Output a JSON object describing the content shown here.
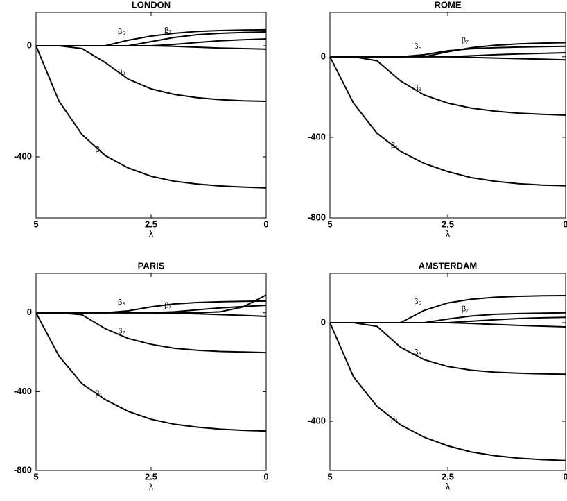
{
  "chart_data": [
    {
      "type": "line",
      "title": "LONDON",
      "xlabel": "λ",
      "xlim": [
        5,
        0
      ],
      "xticks": [
        5,
        2.5,
        0
      ],
      "ylim": [
        -620,
        120
      ],
      "yticks": [
        -400,
        0
      ],
      "x": [
        5,
        4.5,
        4,
        3.5,
        3,
        2.5,
        2,
        1.5,
        1,
        0.5,
        0
      ],
      "series": [
        {
          "name": "β₁",
          "color": "#000000",
          "values": [
            0,
            -200,
            -320,
            -395,
            -440,
            -470,
            -488,
            -498,
            -505,
            -509,
            -512
          ]
        },
        {
          "name": "β₂",
          "color": "#000000",
          "values": [
            0,
            0,
            -10,
            -60,
            -120,
            -155,
            -175,
            -187,
            -194,
            -198,
            -200
          ]
        },
        {
          "name": "β₅",
          "color": "#000000",
          "values": [
            0,
            0,
            0,
            0,
            20,
            35,
            45,
            52,
            55,
            57,
            58
          ]
        },
        {
          "name": "β₇",
          "color": "#000000",
          "values": [
            0,
            0,
            0,
            0,
            0,
            15,
            30,
            40,
            45,
            48,
            50
          ]
        },
        {
          "color": "#000000",
          "values": [
            0,
            0,
            0,
            0,
            0,
            0,
            5,
            12,
            18,
            22,
            25
          ]
        },
        {
          "color": "#000000",
          "values": [
            0,
            0,
            0,
            0,
            0,
            0,
            -2,
            -5,
            -8,
            -10,
            -12
          ]
        }
      ]
    },
    {
      "type": "line",
      "title": "ROME",
      "xlabel": "λ",
      "xlim": [
        5,
        0
      ],
      "xticks": [
        5,
        2.5,
        0
      ],
      "ylim": [
        -800,
        220
      ],
      "yticks": [
        -800,
        -400,
        0
      ],
      "x": [
        5,
        4.5,
        4,
        3.5,
        3,
        2.5,
        2,
        1.5,
        1,
        0.5,
        0
      ],
      "series": [
        {
          "name": "β₁",
          "color": "#000000",
          "values": [
            0,
            -230,
            -380,
            -470,
            -530,
            -570,
            -600,
            -618,
            -630,
            -637,
            -640
          ]
        },
        {
          "name": "β₃",
          "color": "#000000",
          "values": [
            0,
            0,
            -20,
            -120,
            -190,
            -230,
            -255,
            -270,
            -280,
            -286,
            -290
          ]
        },
        {
          "name": "β₅",
          "color": "#000000",
          "values": [
            0,
            0,
            0,
            0,
            10,
            30,
            40,
            45,
            48,
            50,
            52
          ]
        },
        {
          "name": "β₇",
          "color": "#000000",
          "values": [
            0,
            0,
            0,
            0,
            0,
            25,
            45,
            57,
            64,
            68,
            70
          ]
        },
        {
          "color": "#000000",
          "values": [
            0,
            0,
            0,
            0,
            0,
            0,
            5,
            10,
            14,
            17,
            20
          ]
        },
        {
          "color": "#000000",
          "values": [
            0,
            0,
            0,
            0,
            0,
            0,
            -3,
            -6,
            -9,
            -12,
            -15
          ]
        }
      ]
    },
    {
      "type": "line",
      "title": "PARIS",
      "xlabel": "λ",
      "xlim": [
        5,
        0
      ],
      "xticks": [
        5,
        2.5,
        0
      ],
      "ylim": [
        -800,
        200
      ],
      "yticks": [
        -800,
        -400,
        0
      ],
      "x": [
        5,
        4.5,
        4,
        3.5,
        3,
        2.5,
        2,
        1.5,
        1,
        0.5,
        0
      ],
      "series": [
        {
          "name": "β₁",
          "color": "#000000",
          "values": [
            0,
            -220,
            -360,
            -440,
            -500,
            -540,
            -565,
            -580,
            -590,
            -596,
            -600
          ]
        },
        {
          "name": "β₂",
          "color": "#000000",
          "values": [
            0,
            0,
            -10,
            -80,
            -130,
            -160,
            -180,
            -190,
            -196,
            -199,
            -202
          ]
        },
        {
          "name": "β₅",
          "color": "#000000",
          "values": [
            0,
            0,
            0,
            0,
            10,
            30,
            45,
            52,
            56,
            58,
            60
          ]
        },
        {
          "name": "β₇",
          "color": "#000000",
          "values": [
            0,
            0,
            0,
            0,
            0,
            0,
            0,
            0,
            5,
            30,
            90
          ]
        },
        {
          "color": "#000000",
          "values": [
            0,
            0,
            0,
            0,
            0,
            0,
            5,
            15,
            25,
            32,
            38
          ]
        },
        {
          "color": "#000000",
          "values": [
            0,
            0,
            0,
            0,
            0,
            0,
            -2,
            -5,
            -9,
            -13,
            -18
          ]
        }
      ]
    },
    {
      "type": "line",
      "title": "AMSTERDAM",
      "xlabel": "λ",
      "xlim": [
        5,
        0
      ],
      "xticks": [
        5,
        2.5,
        0
      ],
      "ylim": [
        -600,
        200
      ],
      "yticks": [
        -400,
        0
      ],
      "x": [
        5,
        4.5,
        4,
        3.5,
        3,
        2.5,
        2,
        1.5,
        1,
        0.5,
        0
      ],
      "series": [
        {
          "name": "β₁",
          "color": "#000000",
          "values": [
            0,
            -220,
            -340,
            -415,
            -465,
            -500,
            -525,
            -540,
            -550,
            -556,
            -560
          ]
        },
        {
          "name": "β₃",
          "color": "#000000",
          "values": [
            0,
            0,
            -15,
            -100,
            -150,
            -178,
            -193,
            -201,
            -205,
            -208,
            -209
          ]
        },
        {
          "name": "β₅",
          "color": "#000000",
          "values": [
            0,
            0,
            0,
            0,
            50,
            80,
            95,
            103,
            107,
            109,
            110
          ]
        },
        {
          "name": "β₇",
          "color": "#000000",
          "values": [
            0,
            0,
            0,
            0,
            0,
            15,
            27,
            34,
            37,
            39,
            40
          ]
        },
        {
          "color": "#000000",
          "values": [
            0,
            0,
            0,
            0,
            0,
            0,
            6,
            12,
            17,
            20,
            22
          ]
        },
        {
          "color": "#000000",
          "values": [
            0,
            0,
            0,
            0,
            0,
            0,
            -3,
            -7,
            -11,
            -14,
            -17
          ]
        }
      ]
    }
  ]
}
